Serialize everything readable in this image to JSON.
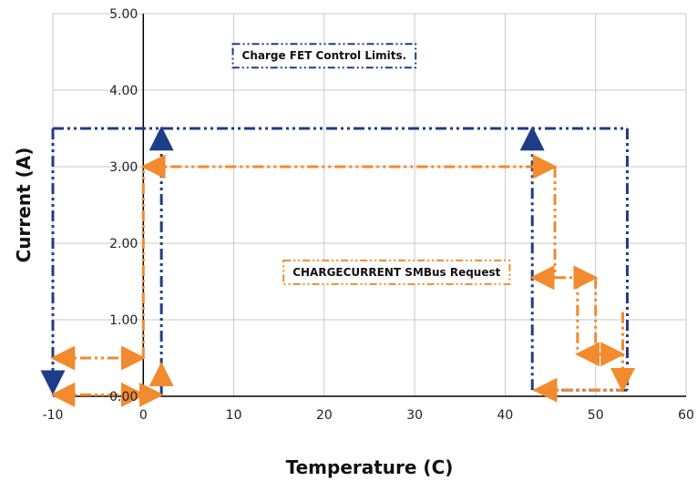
{
  "chart_data": {
    "type": "line",
    "title": "",
    "xlabel": "Temperature (C)",
    "ylabel": "Current (A)",
    "xlim": [
      -10,
      60
    ],
    "ylim": [
      0,
      5
    ],
    "x_ticks": [
      -10,
      0,
      10,
      20,
      30,
      40,
      50,
      60
    ],
    "x_tick_labels": [
      "-10",
      "0",
      "10",
      "20",
      "30",
      "40",
      "50",
      "60"
    ],
    "y_ticks": [
      0,
      1,
      2,
      3,
      4,
      5
    ],
    "y_tick_labels": [
      "0.00",
      "1.00",
      "2.00",
      "3.00",
      "4.00",
      "5.00"
    ],
    "grid": true,
    "legend": "none",
    "colors": {
      "fet_limits": "#1f3c88",
      "smbus_request": "#f28a2e",
      "grid": "#c8c8c8",
      "axis": "#000000"
    },
    "series": [
      {
        "color": "#1f3c88",
        "style": "dash-dot-dot",
        "x": [
          -10,
          -10,
          53.5,
          53.5,
          43,
          43
        ],
        "y": [
          0,
          3.5,
          3.5,
          0.08,
          0.08,
          3.5
        ],
        "segments": [
          {
            "from": [
              -10,
              3.5
            ],
            "to": [
              -10,
              0.05
            ],
            "arrow": "end"
          },
          {
            "from": [
              -10,
              3.5
            ],
            "to": [
              53.5,
              3.5
            ],
            "arrow": "none"
          },
          {
            "from": [
              53.5,
              3.5
            ],
            "to": [
              53.5,
              0.08
            ],
            "arrow": "none"
          },
          {
            "from": [
              53.5,
              0.08
            ],
            "to": [
              43,
              0.08
            ],
            "arrow": "none"
          },
          {
            "from": [
              43,
              0.08
            ],
            "to": [
              43,
              3.5
            ],
            "arrow": "end"
          },
          {
            "from": [
              2,
              0
            ],
            "to": [
              2,
              3.5
            ],
            "arrow": "end"
          }
        ]
      },
      {
        "color": "#f28a2e",
        "style": "dash-dot-dot",
        "x": [
          -10,
          0,
          0,
          -10,
          0,
          0,
          45.5,
          45.5,
          43,
          48,
          48,
          50,
          50,
          53,
          53
        ],
        "y": [
          0.02,
          0.02,
          0.5,
          0.5,
          0.5,
          3.0,
          3.0,
          1.55,
          1.55,
          1.55,
          0.55,
          0.55,
          1.55,
          1.1,
          0.08
        ],
        "segments": [
          {
            "from": [
              -10,
              0.02
            ],
            "to": [
              0,
              0.02
            ],
            "arrow": "both"
          },
          {
            "from": [
              0,
              0.02
            ],
            "to": [
              2,
              0.02
            ],
            "arrow": "end"
          },
          {
            "from": [
              -10,
              0.5
            ],
            "to": [
              0,
              0.5
            ],
            "arrow": "both"
          },
          {
            "from": [
              0,
              0.5
            ],
            "to": [
              0,
              3.0
            ],
            "arrow": "none"
          },
          {
            "from": [
              2,
              0.25
            ],
            "to": [
              2,
              0.42
            ],
            "arrow": "end"
          },
          {
            "from": [
              0,
              3.0
            ],
            "to": [
              45.5,
              3.0
            ],
            "arrow": "both"
          },
          {
            "from": [
              45.5,
              3.0
            ],
            "to": [
              45.5,
              1.55
            ],
            "arrow": "none"
          },
          {
            "from": [
              43,
              1.55
            ],
            "to": [
              45.5,
              1.55
            ],
            "arrow": "start"
          },
          {
            "from": [
              45.5,
              1.55
            ],
            "to": [
              50,
              1.55
            ],
            "arrow": "end"
          },
          {
            "from": [
              48,
              1.55
            ],
            "to": [
              48,
              0.55
            ],
            "arrow": "none"
          },
          {
            "from": [
              48,
              0.55
            ],
            "to": [
              53,
              0.55
            ],
            "arrow": "both"
          },
          {
            "from": [
              50,
              1.55
            ],
            "to": [
              50,
              0.55
            ],
            "arrow": "none"
          },
          {
            "from": [
              53,
              1.1
            ],
            "to": [
              53,
              0.08
            ],
            "arrow": "end"
          },
          {
            "from": [
              43.3,
              0.08
            ],
            "to": [
              53,
              0.08
            ],
            "arrow": "start"
          }
        ]
      }
    ],
    "annotations": [
      {
        "text": "Charge FET Control Limits.",
        "x": 20,
        "y": 4.45,
        "color": "#1f3c88"
      },
      {
        "text": "CHARGECURRENT SMBus Request",
        "x": 28,
        "y": 1.62,
        "color": "#f28a2e"
      }
    ]
  }
}
